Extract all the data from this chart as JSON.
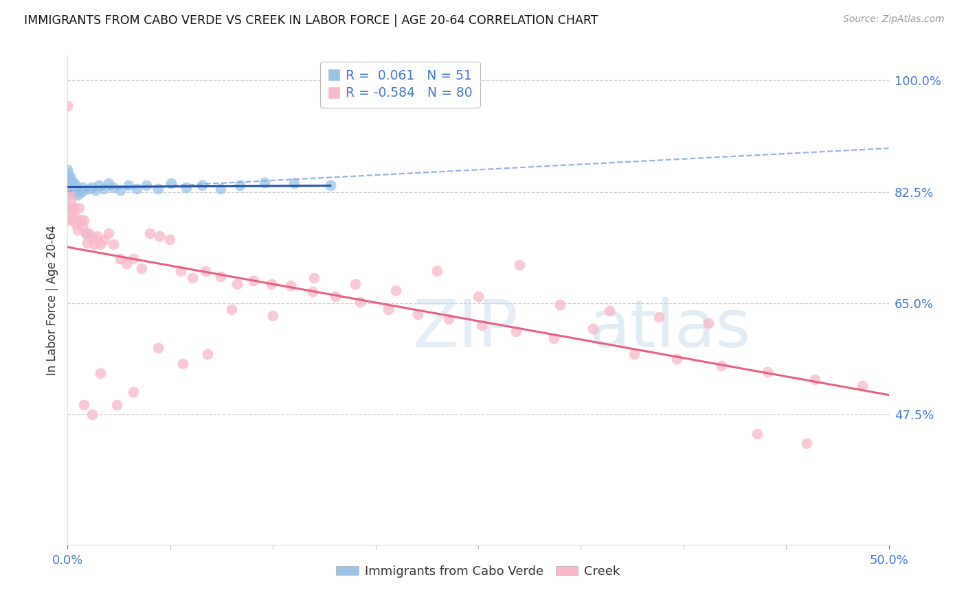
{
  "title": "IMMIGRANTS FROM CABO VERDE VS CREEK IN LABOR FORCE | AGE 20-64 CORRELATION CHART",
  "source": "Source: ZipAtlas.com",
  "ylabel": "In Labor Force | Age 20-64",
  "xmin": 0.0,
  "xmax": 0.5,
  "ymin": 0.27,
  "ymax": 1.04,
  "ytick_positions": [
    0.475,
    0.65,
    0.825,
    1.0
  ],
  "ytick_labels": [
    "47.5%",
    "65.0%",
    "82.5%",
    "100.0%"
  ],
  "xtick_positions": [
    0.0,
    0.5
  ],
  "xtick_labels": [
    "0.0%",
    "50.0%"
  ],
  "grid_color": "#cccccc",
  "bg_color": "#ffffff",
  "axis_color": "#4477cc",
  "text_color": "#333333",
  "source_color": "#999999",
  "cabo_verde_color": "#99c4e8",
  "creek_color": "#f9b8c9",
  "cabo_verde_line_color": "#2255aa",
  "cabo_verde_dash_color": "#88aadd",
  "creek_line_color": "#e86080",
  "cabo_verde_R": "0.061",
  "cabo_verde_N": "51",
  "creek_R": "-0.584",
  "creek_N": "80",
  "cabo_verde_x": [
    0.0,
    0.0,
    0.0,
    0.0,
    0.0,
    0.0,
    0.0,
    0.0,
    0.001,
    0.001,
    0.001,
    0.001,
    0.001,
    0.002,
    0.002,
    0.002,
    0.002,
    0.003,
    0.003,
    0.003,
    0.004,
    0.004,
    0.005,
    0.005,
    0.006,
    0.006,
    0.007,
    0.008,
    0.009,
    0.01,
    0.011,
    0.013,
    0.015,
    0.017,
    0.019,
    0.022,
    0.025,
    0.028,
    0.032,
    0.037,
    0.042,
    0.048,
    0.055,
    0.063,
    0.072,
    0.082,
    0.093,
    0.105,
    0.12,
    0.138,
    0.16
  ],
  "cabo_verde_y": [
    0.86,
    0.855,
    0.85,
    0.845,
    0.84,
    0.835,
    0.83,
    0.825,
    0.85,
    0.845,
    0.838,
    0.832,
    0.825,
    0.845,
    0.838,
    0.83,
    0.822,
    0.84,
    0.832,
    0.824,
    0.838,
    0.828,
    0.835,
    0.825,
    0.83,
    0.82,
    0.828,
    0.825,
    0.832,
    0.828,
    0.76,
    0.83,
    0.832,
    0.828,
    0.835,
    0.83,
    0.838,
    0.832,
    0.828,
    0.835,
    0.83,
    0.835,
    0.83,
    0.838,
    0.832,
    0.835,
    0.83,
    0.835,
    0.84,
    0.838,
    0.835
  ],
  "creek_x": [
    0.0,
    0.0,
    0.0,
    0.001,
    0.001,
    0.002,
    0.002,
    0.003,
    0.003,
    0.004,
    0.005,
    0.005,
    0.006,
    0.007,
    0.008,
    0.009,
    0.01,
    0.011,
    0.012,
    0.013,
    0.015,
    0.016,
    0.018,
    0.02,
    0.022,
    0.025,
    0.028,
    0.032,
    0.036,
    0.04,
    0.045,
    0.05,
    0.056,
    0.062,
    0.069,
    0.076,
    0.084,
    0.093,
    0.103,
    0.113,
    0.124,
    0.136,
    0.149,
    0.163,
    0.178,
    0.195,
    0.213,
    0.232,
    0.252,
    0.273,
    0.296,
    0.32,
    0.345,
    0.371,
    0.398,
    0.426,
    0.455,
    0.484,
    0.15,
    0.175,
    0.2,
    0.225,
    0.25,
    0.275,
    0.3,
    0.33,
    0.36,
    0.39,
    0.42,
    0.45,
    0.1,
    0.125,
    0.085,
    0.07,
    0.055,
    0.04,
    0.03,
    0.02,
    0.015,
    0.01
  ],
  "creek_y": [
    0.96,
    0.8,
    0.78,
    0.82,
    0.8,
    0.81,
    0.79,
    0.795,
    0.78,
    0.8,
    0.785,
    0.775,
    0.765,
    0.8,
    0.78,
    0.77,
    0.78,
    0.76,
    0.745,
    0.76,
    0.752,
    0.742,
    0.755,
    0.742,
    0.75,
    0.76,
    0.742,
    0.72,
    0.712,
    0.72,
    0.705,
    0.76,
    0.755,
    0.75,
    0.7,
    0.69,
    0.7,
    0.692,
    0.68,
    0.685,
    0.68,
    0.678,
    0.668,
    0.66,
    0.652,
    0.64,
    0.632,
    0.625,
    0.615,
    0.605,
    0.595,
    0.61,
    0.57,
    0.562,
    0.552,
    0.542,
    0.53,
    0.52,
    0.69,
    0.68,
    0.67,
    0.7,
    0.66,
    0.71,
    0.648,
    0.638,
    0.628,
    0.618,
    0.445,
    0.43,
    0.64,
    0.63,
    0.57,
    0.555,
    0.58,
    0.51,
    0.49,
    0.54,
    0.475,
    0.49
  ],
  "watermark_color": "#c8d8e8",
  "legend_cabo_label": "Immigrants from Cabo Verde",
  "legend_creek_label": "Creek"
}
